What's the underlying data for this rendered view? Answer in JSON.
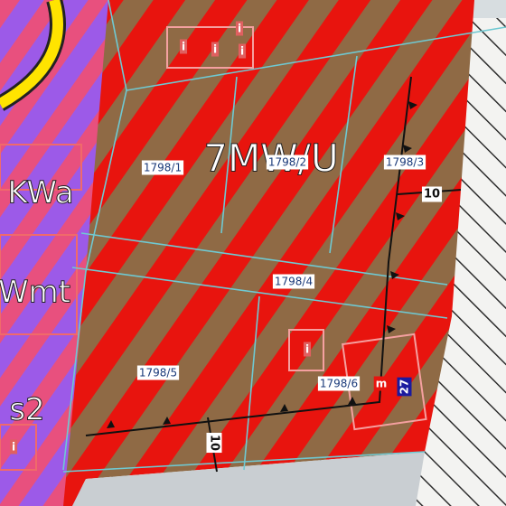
{
  "zone_label": "7MW/U",
  "parcels": [
    "1798/1",
    "1798/2",
    "1798/3",
    "1798/4",
    "1798/5",
    "1798/6"
  ],
  "zones": [
    "KWa",
    "Wmt",
    "s2"
  ],
  "markers": [
    "10",
    "10",
    "27",
    "m",
    "i",
    "i",
    "i",
    "i",
    "i",
    "i"
  ]
}
